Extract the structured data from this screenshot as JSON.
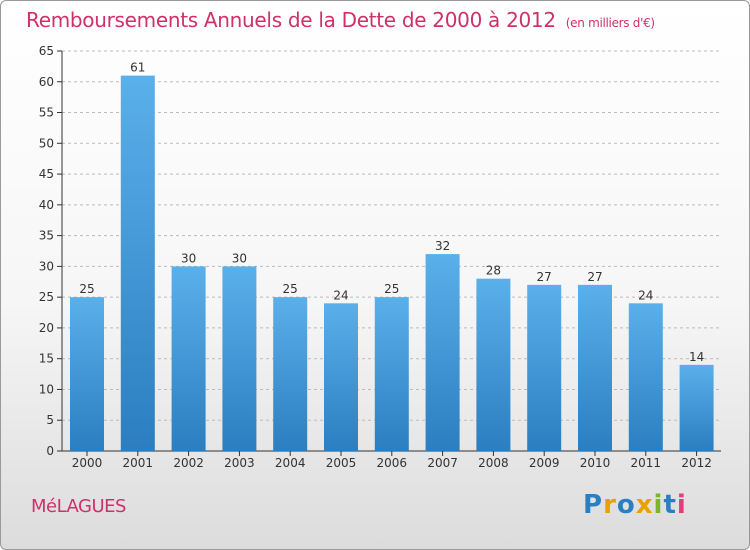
{
  "page": {
    "title": "Remboursements Annuels de la Dette de 2000 à 2012",
    "unit_note": "(en milliers d'€)",
    "commune": "MéLAGUES",
    "logo": {
      "text": "Proxiti",
      "letters": [
        {
          "ch": "P",
          "color": "#2a7fc1"
        },
        {
          "ch": "r",
          "color": "#e8a200"
        },
        {
          "ch": "o",
          "color": "#2a7fc1"
        },
        {
          "ch": "x",
          "color": "#e8a200"
        },
        {
          "ch": "i",
          "color": "#7bb62a"
        },
        {
          "ch": "t",
          "color": "#2a7fc1"
        },
        {
          "ch": "i",
          "color": "#e83b7a"
        }
      ]
    }
  },
  "colors": {
    "accent": "#d0306a",
    "bar_light": "#5ab0ea",
    "bar_dark": "#2b7ec0",
    "axis": "#333333",
    "grid": "#bbbbbb"
  },
  "chart_data": {
    "type": "bar",
    "title": "Remboursements Annuels de la Dette de 2000 à 2012",
    "ylabel": "(en milliers d'€)",
    "xlabel": "",
    "categories": [
      "2000",
      "2001",
      "2002",
      "2003",
      "2004",
      "2005",
      "2006",
      "2007",
      "2008",
      "2009",
      "2010",
      "2011",
      "2012"
    ],
    "values": [
      25,
      61,
      30,
      30,
      25,
      24,
      25,
      32,
      28,
      27,
      27,
      24,
      14
    ],
    "ylim": [
      0,
      65
    ],
    "yticks": [
      0,
      5,
      10,
      15,
      20,
      25,
      30,
      35,
      40,
      45,
      50,
      55,
      60,
      65
    ],
    "grid": "horizontal dashed",
    "data_labels": true
  }
}
